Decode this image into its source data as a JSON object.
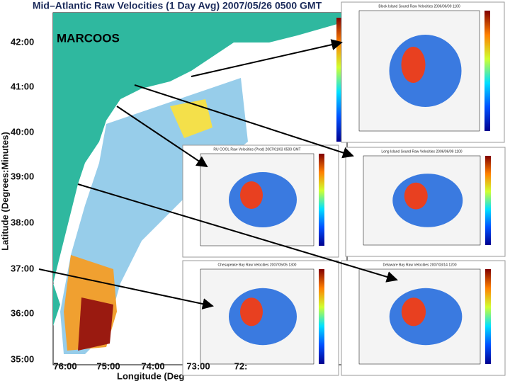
{
  "title": "Mid–Atlantic Raw Velocities (1 Day Avg) 2007/05/26 0500 GMT",
  "label": "MARCOOS",
  "y_axis": {
    "title": "Latitude (Degrees:Minutes)",
    "ticks": [
      "42:00",
      "41:00",
      "40:00",
      "39:00",
      "38:00",
      "37:00",
      "36:00",
      "35:00"
    ]
  },
  "x_axis": {
    "title": "Longitude (Deg",
    "ticks": [
      "76:00",
      "75:00",
      "74:00",
      "73:00",
      "72:"
    ]
  },
  "insets": [
    {
      "title": "Block Island Sound Raw Velocities 2006/06/09 1100"
    },
    {
      "title": "RU COOL Raw Velocities (Prod) 2007/01/03 0500 GMT"
    },
    {
      "title": "Long Island Sound Raw Velocities 2006/06/09 1100"
    },
    {
      "title": "Chesapeake Bay Raw Velocities 2007/05/05 1300"
    },
    {
      "title": "Delaware Bay Raw Velocities 2007/03/14 1200"
    }
  ]
}
